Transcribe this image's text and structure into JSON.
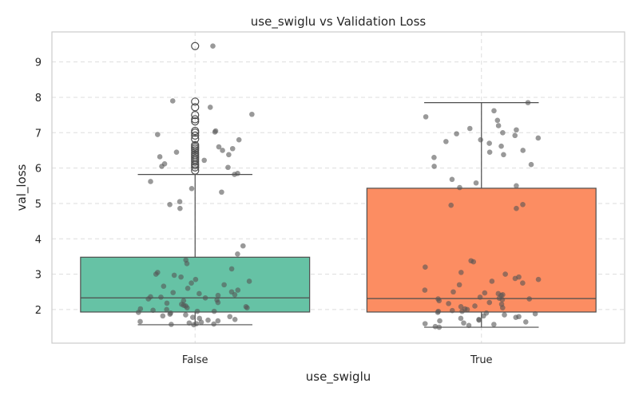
{
  "chart_data": {
    "type": "box",
    "title": "use_swiglu vs Validation Loss",
    "xlabel": "use_swiglu",
    "ylabel": "val_loss",
    "categories": [
      "False",
      "True"
    ],
    "ylim": [
      1.05,
      9.85
    ],
    "yticks": [
      "2",
      "3",
      "4",
      "5",
      "6",
      "7",
      "8",
      "9"
    ],
    "grid": true,
    "colors": {
      "False": "#66c2a5",
      "True": "#fc8d62",
      "box_edge": "#4d4d4d",
      "points": "#555555",
      "grid": "#dddddd",
      "frame": "#cccccc"
    },
    "boxes": [
      {
        "category": "False",
        "whisker_low": 1.57,
        "q1": 1.93,
        "median": 2.33,
        "q3": 3.48,
        "whisker_high": 5.82,
        "outliers": [
          5.93,
          6.02,
          6.08,
          6.12,
          6.18,
          6.23,
          6.28,
          6.33,
          6.38,
          6.44,
          6.5,
          6.55,
          6.6,
          6.65,
          6.82,
          6.92,
          7.0,
          7.05,
          7.32,
          7.38,
          7.5,
          7.72,
          7.88,
          9.45
        ]
      },
      {
        "category": "True",
        "whisker_low": 1.5,
        "q1": 1.93,
        "median": 2.31,
        "q3": 5.43,
        "whisker_high": 7.85,
        "outliers": []
      }
    ],
    "points": [
      {
        "category": "False",
        "values": [
          9.45,
          7.9,
          7.72,
          7.52,
          7.05,
          7.02,
          6.95,
          6.8,
          6.6,
          6.55,
          6.5,
          6.45,
          6.38,
          6.32,
          6.22,
          6.12,
          6.05,
          6.02,
          5.85,
          5.82,
          5.62,
          5.42,
          5.32,
          5.05,
          4.97,
          4.86,
          3.8,
          3.57,
          3.4,
          3.3,
          3.15,
          3.05,
          3.0,
          2.97,
          2.92,
          2.85,
          2.8,
          2.75,
          2.7,
          2.66,
          2.6,
          2.55,
          2.5,
          2.48,
          2.45,
          2.42,
          2.4,
          2.36,
          2.33,
          2.3,
          2.27,
          2.25,
          2.2,
          2.18,
          2.15,
          2.12,
          2.1,
          2.08,
          2.05,
          2.02,
          2.0,
          1.98,
          1.95,
          1.92,
          1.9,
          1.87,
          1.85,
          1.82,
          1.8,
          1.78,
          1.75,
          1.72,
          1.7,
          1.68,
          1.66,
          1.64,
          1.62,
          1.6,
          1.59,
          1.58,
          1.57,
          2.05,
          2.35,
          1.95
        ]
      },
      {
        "category": "True",
        "values": [
          7.85,
          7.62,
          7.45,
          7.35,
          7.2,
          7.12,
          7.08,
          7.0,
          6.97,
          6.92,
          6.85,
          6.8,
          6.75,
          6.7,
          6.62,
          6.5,
          6.45,
          6.38,
          6.3,
          6.1,
          6.05,
          5.68,
          5.58,
          5.5,
          5.45,
          4.97,
          4.95,
          4.86,
          3.38,
          3.35,
          3.2,
          3.05,
          3.0,
          2.92,
          2.88,
          2.85,
          2.8,
          2.75,
          2.7,
          2.55,
          2.5,
          2.47,
          2.45,
          2.42,
          2.4,
          2.35,
          2.32,
          2.3,
          2.28,
          2.25,
          2.2,
          2.17,
          2.15,
          2.1,
          2.08,
          2.05,
          2.02,
          2.0,
          1.97,
          1.95,
          1.92,
          1.9,
          1.88,
          1.85,
          1.82,
          1.8,
          1.78,
          1.75,
          1.72,
          1.7,
          1.68,
          1.65,
          1.62,
          1.6,
          1.58,
          1.55,
          1.52,
          1.5,
          2.3,
          1.95
        ]
      }
    ]
  }
}
